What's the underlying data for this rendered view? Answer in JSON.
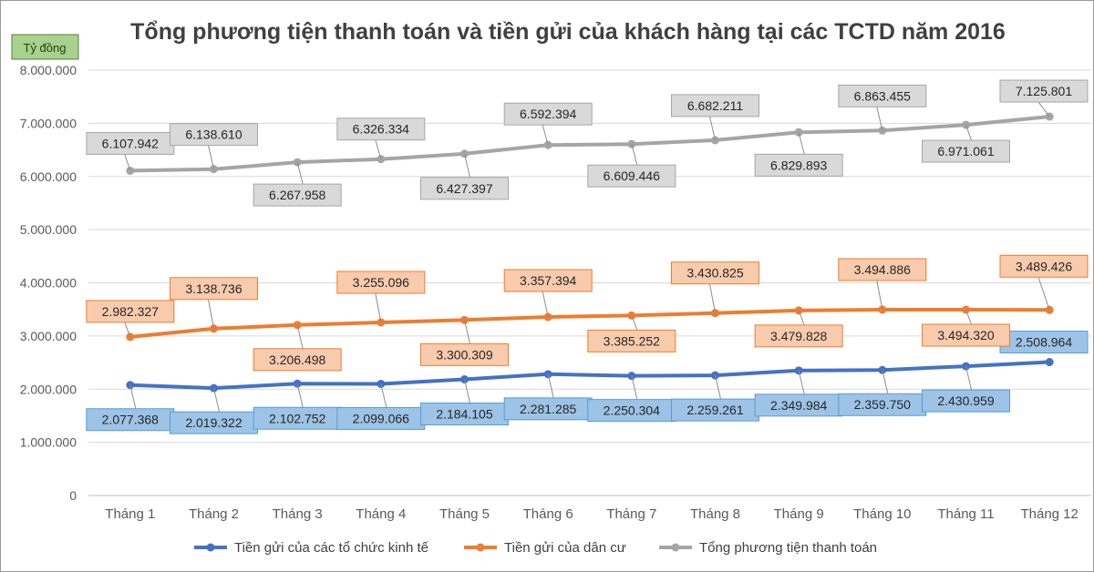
{
  "chart_data": {
    "type": "line",
    "title": "Tổng phương tiện thanh toán và tiền gửi của khách hàng tại các TCTD năm 2016",
    "unit_label": "Tỷ đồng",
    "xlabel": "",
    "ylabel": "",
    "ylim": [
      0,
      8000000
    ],
    "yticks": [
      0,
      1000000,
      2000000,
      3000000,
      4000000,
      5000000,
      6000000,
      7000000,
      8000000
    ],
    "ytick_labels": [
      "0",
      "1.000.000",
      "2.000.000",
      "3.000.000",
      "4.000.000",
      "5.000.000",
      "6.000.000",
      "7.000.000",
      "8.000.000"
    ],
    "grid": true,
    "legend_position": "bottom",
    "categories": [
      "Tháng 1",
      "Tháng 2",
      "Tháng 3",
      "Tháng 4",
      "Tháng 5",
      "Tháng 6",
      "Tháng 7",
      "Tháng 8",
      "Tháng 9",
      "Tháng 10",
      "Tháng 11",
      "Tháng 12"
    ],
    "series": [
      {
        "name": "Tiền gửi của các tổ chức kinh tế",
        "color": "#4472c4",
        "label_fill": "#9dc3e6",
        "label_stroke": "#5b9bd5",
        "values": [
          2077368,
          2019322,
          2102752,
          2099066,
          2184105,
          2281285,
          2250304,
          2259261,
          2349984,
          2359750,
          2430959,
          2508964
        ],
        "labels": [
          "2.077.368",
          "2.019.322",
          "2.102.752",
          "2.099.066",
          "2.184.105",
          "2.281.285",
          "2.250.304",
          "2.259.261",
          "2.349.984",
          "2.359.750",
          "2.430.959",
          "2.508.964"
        ]
      },
      {
        "name": "Tiền gửi của dân cư",
        "color": "#ed7d31",
        "label_fill": "#f8cbad",
        "label_stroke": "#ed7d31",
        "values": [
          2982327,
          3138736,
          3206498,
          3255096,
          3300309,
          3357394,
          3385252,
          3430825,
          3479828,
          3494886,
          3494320,
          3489426
        ],
        "labels": [
          "2.982.327",
          "3.138.736",
          "3.206.498",
          "3.255.096",
          "3.300.309",
          "3.357.394",
          "3.385.252",
          "3.430.825",
          "3.479.828",
          "3.494.886",
          "3.494.320",
          "3.489.426"
        ]
      },
      {
        "name": "Tổng phương tiện thanh toán",
        "color": "#a5a5a5",
        "label_fill": "#d9d9d9",
        "label_stroke": "#a6a6a6",
        "values": [
          6107942,
          6138610,
          6267958,
          6326334,
          6427397,
          6592394,
          6609446,
          6682211,
          6829893,
          6863455,
          6971061,
          7125801
        ],
        "labels": [
          "6.107.942",
          "6.138.610",
          "6.267.958",
          "6.326.334",
          "6.427.397",
          "6.592.394",
          "6.609.446",
          "6.682.211",
          "6.829.893",
          "6.863.455",
          "6.971.061",
          "7.125.801"
        ]
      }
    ]
  }
}
